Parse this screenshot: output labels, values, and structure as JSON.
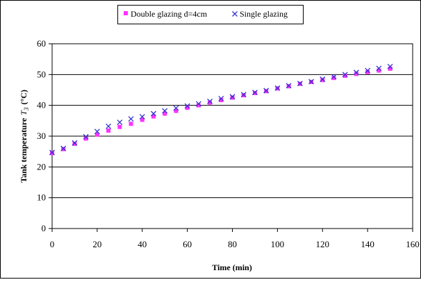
{
  "chart_data": {
    "type": "scatter",
    "title": "",
    "xlabel": "Time (min)",
    "ylabel_main": "Tank temperature",
    "ylabel_symbol": "T",
    "ylabel_subscript": "3",
    "ylabel_unit": "(°C)",
    "xlim": [
      0,
      160
    ],
    "ylim": [
      0,
      60
    ],
    "x_ticks": [
      0,
      20,
      40,
      60,
      80,
      100,
      120,
      140,
      160
    ],
    "y_ticks": [
      0,
      10,
      20,
      30,
      40,
      50,
      60
    ],
    "grid": "horizontal",
    "legend_position": "top-center",
    "x": [
      0,
      5,
      10,
      15,
      20,
      25,
      30,
      35,
      40,
      45,
      50,
      55,
      60,
      65,
      70,
      75,
      80,
      85,
      90,
      95,
      100,
      105,
      110,
      115,
      120,
      125,
      130,
      135,
      140,
      145,
      150
    ],
    "series": [
      {
        "name": "Double glazing d=4cm",
        "marker": "square",
        "color": "#ff33ff",
        "values": [
          24.5,
          25.8,
          27.5,
          29.2,
          30.5,
          31.8,
          33.0,
          34.0,
          35.3,
          36.4,
          37.3,
          38.2,
          39.2,
          40.0,
          40.9,
          41.7,
          42.5,
          43.3,
          44.0,
          44.6,
          45.5,
          46.2,
          47.0,
          47.6,
          48.2,
          48.9,
          49.6,
          50.2,
          50.8,
          51.3,
          51.9
        ]
      },
      {
        "name": "Single glazing",
        "marker": "x",
        "color": "#3333cc",
        "values": [
          24.7,
          26.0,
          27.8,
          29.8,
          31.5,
          33.2,
          34.5,
          35.6,
          36.3,
          37.3,
          38.2,
          39.1,
          39.8,
          40.5,
          41.3,
          42.2,
          42.8,
          43.5,
          44.2,
          44.8,
          45.6,
          46.4,
          47.1,
          47.7,
          48.5,
          49.3,
          50.0,
          50.7,
          51.3,
          52.0,
          52.6
        ]
      }
    ]
  }
}
